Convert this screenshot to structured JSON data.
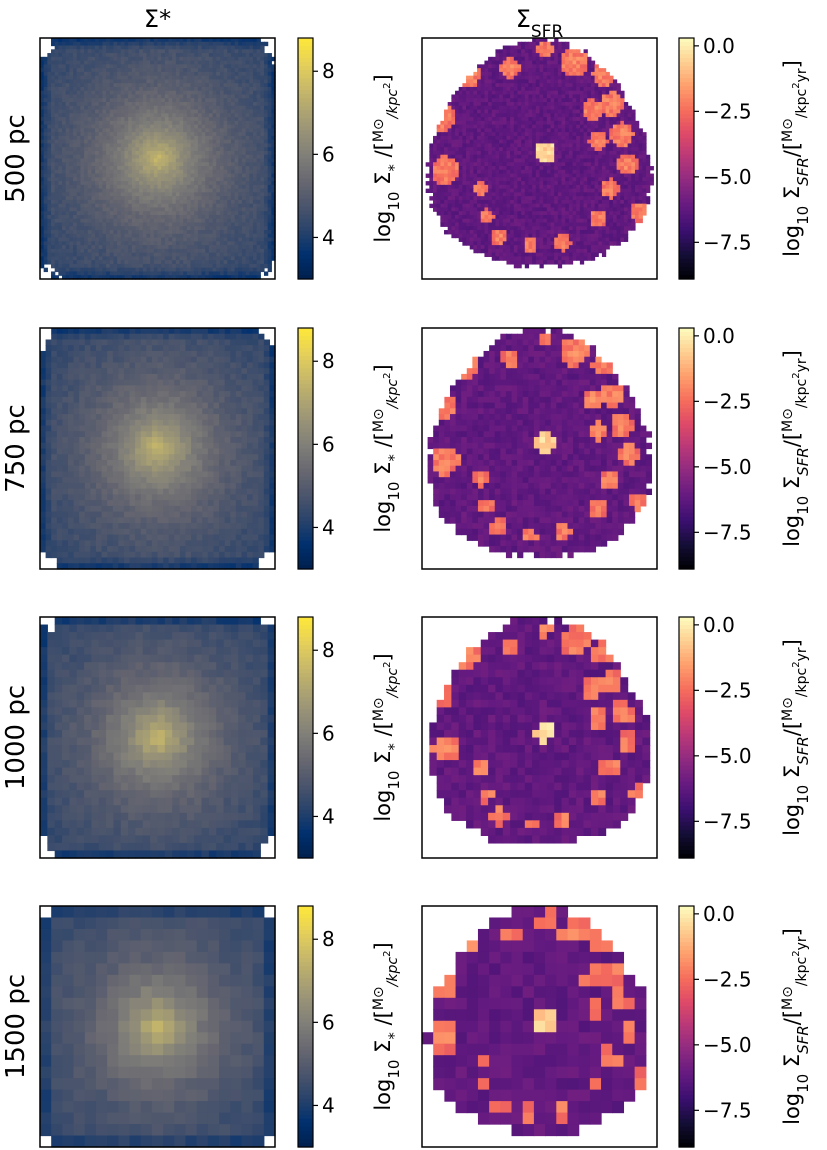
{
  "chart_data": {
    "type": "heatmap",
    "columns": [
      {
        "title_main": "Σ",
        "title_sub": "*",
        "title_sub_position": "sub",
        "colormap": "cividis",
        "colorbar": {
          "range": [
            3.0,
            8.8
          ],
          "ticks": [
            4,
            6,
            8
          ],
          "tick_labels": [
            "4",
            "6",
            "8"
          ],
          "label_main": "log",
          "label_base": "10",
          "label_symbol": " Σ",
          "label_symbol_sub": "*",
          "label_slash": " /",
          "unit_num": "M",
          "unit_num_sub": "⊙",
          "unit_den": "kpc",
          "unit_den_sup": "2",
          "unit_den_extra": ""
        }
      },
      {
        "title_main": "Σ",
        "title_sub": "SFR",
        "title_sub_position": "sub",
        "colormap": "magma",
        "colorbar": {
          "range": [
            -8.9,
            0.3
          ],
          "ticks": [
            0.0,
            -2.5,
            -5.0,
            -7.5
          ],
          "tick_labels": [
            "0.0",
            "−2.5",
            "−5.0",
            "−7.5"
          ],
          "label_main": "log",
          "label_base": "10",
          "label_symbol": " Σ",
          "label_symbol_sub": "SFR",
          "label_slash": "/",
          "unit_num": "M",
          "unit_num_sub": "⊙",
          "unit_den": "kpc",
          "unit_den_sup": "2",
          "unit_den_extra": "yr"
        }
      }
    ],
    "rows": [
      {
        "label": "500 pc",
        "grid_cells": 64
      },
      {
        "label": "750 pc",
        "grid_cells": 42
      },
      {
        "label": "1000 pc",
        "grid_cells": 32
      },
      {
        "label": "1500 pc",
        "grid_cells": 21
      }
    ],
    "stellar_model": {
      "center_value": 7.6,
      "edge_value": 4.2,
      "min_value": 3.0
    },
    "sfr_model": {
      "background_value": -6.2,
      "clump_value": -2.0,
      "center_value": -0.5,
      "outer_radius": 1.0
    }
  }
}
